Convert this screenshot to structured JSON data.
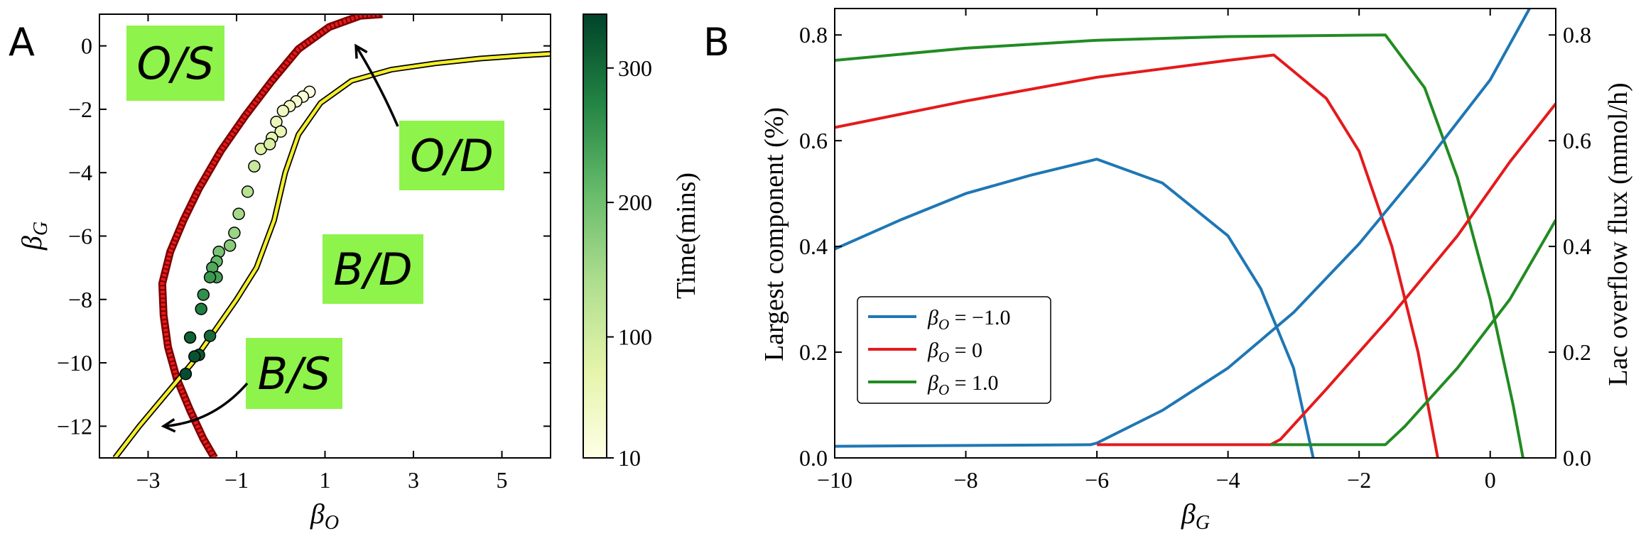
{
  "panel_labels": {
    "a": "A",
    "b": "B"
  },
  "chart_data": [
    {
      "type": "line",
      "title": "",
      "xlabel": "β_O",
      "ylabel": "β_G",
      "xlim": [
        -4.1,
        6.1
      ],
      "ylim": [
        -13,
        1
      ],
      "xticks": [
        -3,
        -1,
        1,
        3,
        5
      ],
      "yticks": [
        0,
        -2,
        -4,
        -6,
        -8,
        -10,
        -12
      ],
      "region_labels": [
        "O/S",
        "O/D",
        "B/D",
        "B/S"
      ],
      "series": [
        {
          "name": "Red boundary",
          "color": "#e41a1c",
          "points": [
            [
              -1.5,
              -13
            ],
            [
              -1.75,
              -12.4
            ],
            [
              -2.05,
              -11.5
            ],
            [
              -2.35,
              -10.5
            ],
            [
              -2.55,
              -9.5
            ],
            [
              -2.65,
              -8.5
            ],
            [
              -2.68,
              -7.5
            ],
            [
              -2.5,
              -6.5
            ],
            [
              -2.2,
              -5.5
            ],
            [
              -1.85,
              -4.5
            ],
            [
              -1.35,
              -3.3
            ],
            [
              -0.8,
              -2.2
            ],
            [
              -0.2,
              -1.1
            ],
            [
              0.4,
              -0.1
            ],
            [
              1.1,
              0.6
            ],
            [
              1.8,
              0.95
            ],
            [
              2.3,
              1.0
            ]
          ]
        },
        {
          "name": "Yellow boundary",
          "color": "#f4ef2a",
          "points": [
            [
              -3.75,
              -13
            ],
            [
              -3.2,
              -12
            ],
            [
              -2.6,
              -11
            ],
            [
              -2.0,
              -10
            ],
            [
              -1.5,
              -9
            ],
            [
              -1.0,
              -8
            ],
            [
              -0.55,
              -7
            ],
            [
              -0.15,
              -5.5
            ],
            [
              0.1,
              -4
            ],
            [
              0.4,
              -2.8
            ],
            [
              0.9,
              -1.8
            ],
            [
              1.6,
              -1.1
            ],
            [
              2.5,
              -0.75
            ],
            [
              3.5,
              -0.55
            ],
            [
              4.5,
              -0.4
            ],
            [
              5.5,
              -0.3
            ],
            [
              6.1,
              -0.25
            ]
          ]
        }
      ],
      "scatter": {
        "name": "Time(mins)",
        "points": [
          [
            0.65,
            -1.45,
            15
          ],
          [
            0.5,
            -1.6,
            25
          ],
          [
            0.35,
            -1.75,
            35
          ],
          [
            0.2,
            -1.9,
            45
          ],
          [
            0.05,
            -2.05,
            50
          ],
          [
            -0.1,
            -2.4,
            60
          ],
          [
            0.0,
            -2.7,
            65
          ],
          [
            -0.2,
            -2.9,
            70
          ],
          [
            -0.45,
            -3.25,
            80
          ],
          [
            -0.25,
            -3.1,
            90
          ],
          [
            -0.6,
            -3.8,
            110
          ],
          [
            -0.75,
            -4.6,
            130
          ],
          [
            -0.95,
            -5.3,
            150
          ],
          [
            -1.05,
            -5.9,
            160
          ],
          [
            -1.15,
            -6.3,
            175
          ],
          [
            -1.4,
            -6.5,
            190
          ],
          [
            -1.45,
            -6.8,
            210
          ],
          [
            -1.55,
            -7.0,
            230
          ],
          [
            -1.45,
            -7.3,
            240
          ],
          [
            -1.6,
            -7.3,
            250
          ],
          [
            -1.75,
            -7.85,
            260
          ],
          [
            -1.8,
            -8.3,
            280
          ],
          [
            -1.6,
            -9.15,
            300
          ],
          [
            -2.05,
            -9.2,
            310
          ],
          [
            -1.85,
            -9.75,
            320
          ],
          [
            -1.95,
            -9.8,
            325
          ],
          [
            -2.15,
            -10.35,
            330
          ]
        ]
      },
      "annotations": [
        {
          "text": "O/D",
          "arrow_to": [
            1.7,
            0.0
          ]
        },
        {
          "text": "B/S",
          "arrow_to": [
            -2.65,
            -12.0
          ]
        }
      ]
    },
    {
      "type": "line",
      "title": "",
      "xlabel": "β_G",
      "ylabel": "Largest component (%)",
      "ylabel_right": "Lac overflow flux (mmol/h)",
      "xlim": [
        -10,
        1.0
      ],
      "ylim": [
        0,
        0.85
      ],
      "ylim_right": [
        0,
        0.85
      ],
      "xticks": [
        -10,
        -8,
        -6,
        -4,
        -2,
        0
      ],
      "yticks": [
        0.0,
        0.2,
        0.4,
        0.6,
        0.8
      ],
      "yticks_right": [
        0.0,
        0.2,
        0.4,
        0.6,
        0.8
      ],
      "legend": {
        "placement": "lower-left",
        "entries": [
          {
            "label": "β_O = −1.0",
            "color": "#1f77b4"
          },
          {
            "label": "β_O = 0",
            "color": "#e41a1c"
          },
          {
            "label": "β_O = 1.0",
            "color": "#228b22"
          }
        ]
      },
      "series": [
        {
          "name": "β_O = −1.0 largest component",
          "color": "#1f77b4",
          "points": [
            [
              -10,
              0.395
            ],
            [
              -9,
              0.45
            ],
            [
              -8,
              0.5
            ],
            [
              -7,
              0.535
            ],
            [
              -6,
              0.565
            ],
            [
              -5,
              0.52
            ],
            [
              -4,
              0.42
            ],
            [
              -3.5,
              0.32
            ],
            [
              -3,
              0.17
            ],
            [
              -2.7,
              0.0
            ]
          ]
        },
        {
          "name": "β_O = 0 largest component",
          "color": "#e41a1c",
          "points": [
            [
              -10,
              0.625
            ],
            [
              -8,
              0.675
            ],
            [
              -6,
              0.72
            ],
            [
              -4,
              0.752
            ],
            [
              -3.3,
              0.762
            ],
            [
              -2.5,
              0.68
            ],
            [
              -2,
              0.58
            ],
            [
              -1.5,
              0.4
            ],
            [
              -1.1,
              0.2
            ],
            [
              -0.8,
              0.0
            ]
          ]
        },
        {
          "name": "β_O = 1.0 largest component",
          "color": "#228b22",
          "points": [
            [
              -10,
              0.752
            ],
            [
              -8,
              0.775
            ],
            [
              -6,
              0.79
            ],
            [
              -4,
              0.797
            ],
            [
              -1.6,
              0.8
            ],
            [
              -1.0,
              0.7
            ],
            [
              -0.5,
              0.53
            ],
            [
              0.0,
              0.3
            ],
            [
              0.35,
              0.1
            ],
            [
              0.5,
              0.0
            ]
          ]
        },
        {
          "name": "β_O = −1.0 lac overflow flux",
          "color": "#1f77b4",
          "points": [
            [
              -10,
              0.022
            ],
            [
              -6.1,
              0.025
            ],
            [
              -6,
              0.028
            ],
            [
              -5,
              0.09
            ],
            [
              -4,
              0.17
            ],
            [
              -3,
              0.275
            ],
            [
              -2,
              0.405
            ],
            [
              -1,
              0.555
            ],
            [
              0,
              0.715
            ],
            [
              0.6,
              0.85
            ]
          ]
        },
        {
          "name": "β_O = 0 lac overflow flux",
          "color": "#e41a1c",
          "points": [
            [
              -6,
              0.025
            ],
            [
              -3.35,
              0.025
            ],
            [
              -3.2,
              0.035
            ],
            [
              -2.5,
              0.13
            ],
            [
              -1.5,
              0.27
            ],
            [
              -0.5,
              0.42
            ],
            [
              0.3,
              0.56
            ],
            [
              1.0,
              0.67
            ]
          ]
        },
        {
          "name": "β_O = 1.0 lac overflow flux",
          "color": "#228b22",
          "points": [
            [
              -3.35,
              0.025
            ],
            [
              -1.6,
              0.025
            ],
            [
              -1.3,
              0.06
            ],
            [
              -0.5,
              0.17
            ],
            [
              0.3,
              0.3
            ],
            [
              1.0,
              0.45
            ]
          ]
        }
      ]
    }
  ]
}
